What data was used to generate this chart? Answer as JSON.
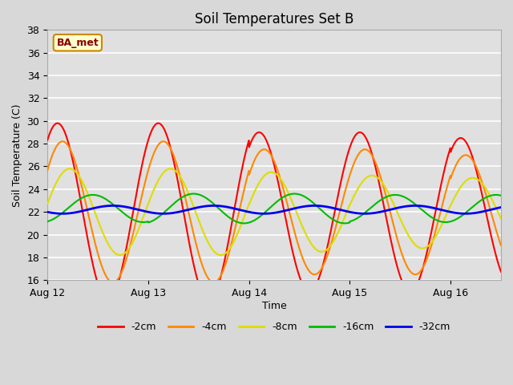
{
  "title": "Soil Temperatures Set B",
  "xlabel": "Time",
  "ylabel": "Soil Temperature (C)",
  "annotation": "BA_met",
  "ylim": [
    16,
    38
  ],
  "yticks": [
    16,
    18,
    20,
    22,
    24,
    26,
    28,
    30,
    32,
    34,
    36,
    38
  ],
  "xlim": [
    0,
    4.5
  ],
  "xtick_labels": [
    "Aug 12",
    "Aug 13",
    "Aug 14",
    "Aug 15",
    "Aug 16"
  ],
  "xtick_positions": [
    0,
    1,
    2,
    3,
    4
  ],
  "colors": {
    "-2cm": "#ff0000",
    "-4cm": "#ff8800",
    "-8cm": "#dddd00",
    "-16cm": "#00bb00",
    "-32cm": "#0000ee"
  },
  "line_widths": {
    "-2cm": 1.5,
    "-4cm": 1.5,
    "-8cm": 1.5,
    "-16cm": 1.5,
    "-32cm": 2.0
  },
  "fig_bg_color": "#d8d8d8",
  "plot_bg_color": "#e0e0e0",
  "legend_labels": [
    "-2cm",
    "-4cm",
    "-8cm",
    "-16cm",
    "-32cm"
  ],
  "figsize": [
    6.4,
    4.8
  ],
  "dpi": 100,
  "amp2_vals": [
    7.8,
    7.8,
    7.0,
    7.0,
    6.5
  ],
  "amp4_vals": [
    6.2,
    6.2,
    5.5,
    5.5,
    5.0
  ],
  "amp8_vals": [
    3.8,
    3.8,
    3.5,
    3.2,
    3.0
  ],
  "amp16_vals": [
    1.2,
    1.3,
    1.3,
    1.2,
    1.2
  ],
  "amp32_vals": [
    0.35,
    0.35,
    0.35,
    0.35,
    0.35
  ],
  "base2": 22.0,
  "base4": 22.0,
  "base8": 22.0,
  "base16": 22.3,
  "base32": 22.2,
  "phi2": 0.85,
  "phi4": 0.9,
  "phi8": 0.97,
  "phi16": 0.2,
  "phi32": 0.4
}
